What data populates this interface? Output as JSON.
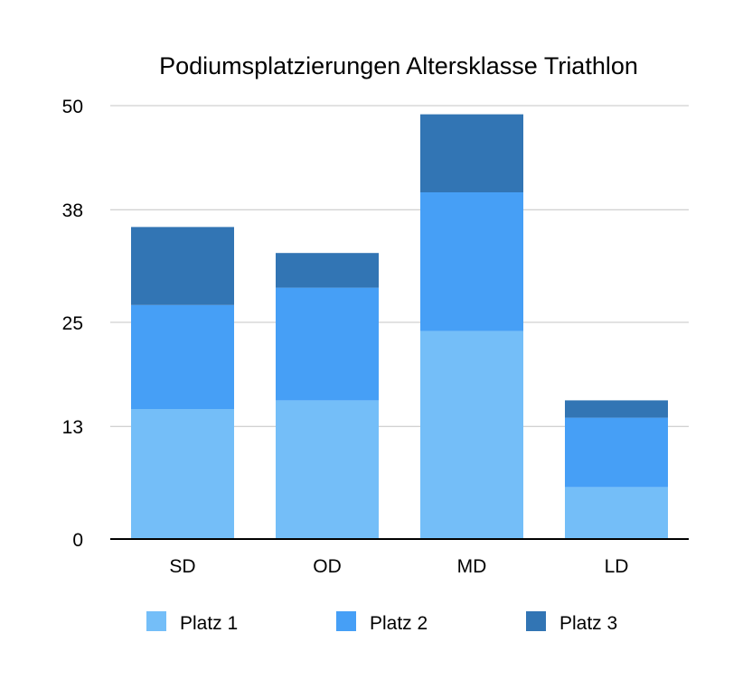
{
  "chart_data": {
    "type": "bar",
    "stacked": true,
    "title": "Podiumsplatzierungen Altersklasse Triathlon",
    "xlabel": "",
    "ylabel": "",
    "categories": [
      "SD",
      "OD",
      "MD",
      "LD"
    ],
    "series": [
      {
        "name": "Platz 1",
        "color": "#74BEF8",
        "values": [
          15,
          16,
          24,
          6
        ]
      },
      {
        "name": "Platz 2",
        "color": "#469FF6",
        "values": [
          12,
          13,
          16,
          8
        ]
      },
      {
        "name": "Platz 3",
        "color": "#3275B4",
        "values": [
          9,
          4,
          9,
          2
        ]
      }
    ],
    "ylim": [
      0,
      50
    ],
    "yticks": [
      "0",
      "13",
      "25",
      "38",
      "50"
    ],
    "grid": true,
    "legend_position": "bottom"
  }
}
